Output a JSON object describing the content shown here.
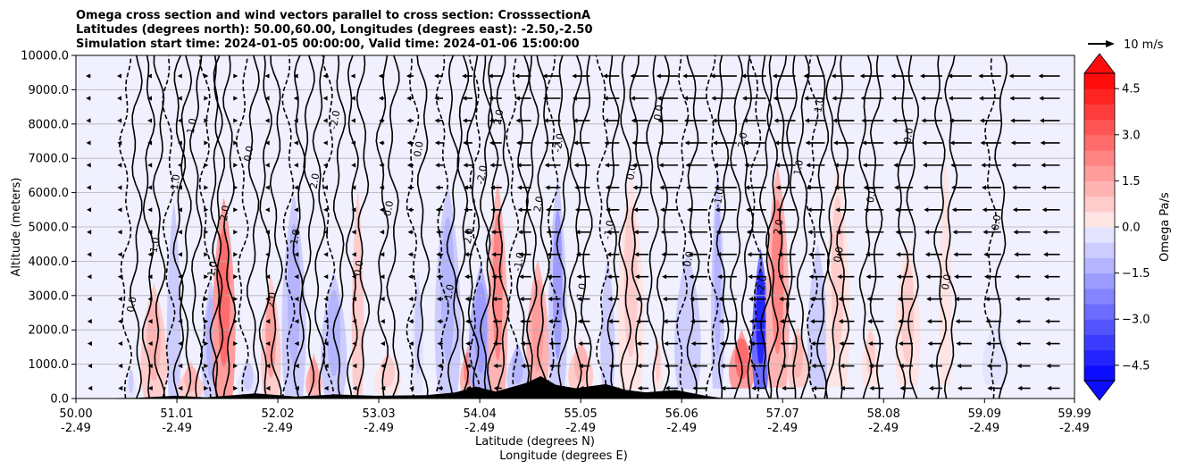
{
  "chart_data": {
    "type": "heatmap",
    "title": [
      "Omega cross section and wind vectors parallel to cross section: CrosssectionA",
      "Latitudes (degrees north): 50.00,60.00, Longitudes (degrees east): -2.50,-2.50",
      "Simulation start time: 2024-01-05 00:00:00, Valid time: 2024-01-06 15:00:00"
    ],
    "xlabel": [
      "Latitude (degrees N)",
      "Longitude (degrees E)"
    ],
    "ylabel": "Altitude (meters)",
    "xlim": [
      50.0,
      59.99
    ],
    "ylim": [
      0,
      10000
    ],
    "x_ticks": [
      {
        "lat": "50.00",
        "lon": "-2.49"
      },
      {
        "lat": "51.01",
        "lon": "-2.49"
      },
      {
        "lat": "52.02",
        "lon": "-2.49"
      },
      {
        "lat": "53.03",
        "lon": "-2.49"
      },
      {
        "lat": "54.04",
        "lon": "-2.49"
      },
      {
        "lat": "55.05",
        "lon": "-2.49"
      },
      {
        "lat": "56.06",
        "lon": "-2.49"
      },
      {
        "lat": "57.07",
        "lon": "-2.49"
      },
      {
        "lat": "58.08",
        "lon": "-2.49"
      },
      {
        "lat": "59.09",
        "lon": "-2.49"
      },
      {
        "lat": "59.99",
        "lon": "-2.49"
      }
    ],
    "y_ticks": [
      "0.0",
      "1000.0",
      "2000.0",
      "3000.0",
      "4000.0",
      "5000.0",
      "6000.0",
      "7000.0",
      "8000.0",
      "9000.0",
      "10000.0"
    ],
    "grid": "horizontal",
    "colorbar": {
      "label": "Omega Pa/s",
      "range": [
        -5.0,
        5.0
      ],
      "ticks": [
        "4.5",
        "3.0",
        "1.5",
        "0.0",
        "−1.5",
        "−3.0",
        "−4.5"
      ],
      "tick_values": [
        4.5,
        3.0,
        1.5,
        0.0,
        -1.5,
        -3.0,
        -4.5
      ],
      "colors": {
        "negative": "#0000ff",
        "zero": "#ffffff",
        "positive": "#ff0000"
      },
      "extend": "both"
    },
    "vector_key": {
      "label": "10 m/s"
    },
    "contour_labels": [
      "0.0",
      "1.0",
      "-1.0",
      "2.0",
      "-2.0"
    ],
    "terrain_color": "#000000",
    "omega_bands": [
      {
        "lat": 50.55,
        "value": -0.6
      },
      {
        "lat": 50.78,
        "value": 1.4
      },
      {
        "lat": 50.98,
        "value": -1.0
      },
      {
        "lat": 51.15,
        "value": 1.2
      },
      {
        "lat": 51.35,
        "value": -1.3
      },
      {
        "lat": 51.48,
        "value": 2.6
      },
      {
        "lat": 51.72,
        "value": -0.8
      },
      {
        "lat": 51.95,
        "value": 1.6
      },
      {
        "lat": 52.18,
        "value": -1.1
      },
      {
        "lat": 52.38,
        "value": 1.8
      },
      {
        "lat": 52.58,
        "value": -1.5
      },
      {
        "lat": 52.82,
        "value": 0.9
      },
      {
        "lat": 53.12,
        "value": 0.7
      },
      {
        "lat": 53.42,
        "value": -0.7
      },
      {
        "lat": 53.72,
        "value": -1.4
      },
      {
        "lat": 53.92,
        "value": 2.2
      },
      {
        "lat": 54.05,
        "value": -1.8
      },
      {
        "lat": 54.22,
        "value": 2.0
      },
      {
        "lat": 54.42,
        "value": -1.2
      },
      {
        "lat": 54.62,
        "value": 1.9
      },
      {
        "lat": 54.82,
        "value": -1.6
      },
      {
        "lat": 55.05,
        "value": 1.1
      },
      {
        "lat": 55.32,
        "value": -1.0
      },
      {
        "lat": 55.55,
        "value": 0.8
      },
      {
        "lat": 55.82,
        "value": 0.5
      },
      {
        "lat": 56.12,
        "value": -0.9
      },
      {
        "lat": 56.42,
        "value": -1.2
      },
      {
        "lat": 56.66,
        "value": 2.6
      },
      {
        "lat": 56.85,
        "value": -4.2
      },
      {
        "lat": 57.02,
        "value": 2.4
      },
      {
        "lat": 57.22,
        "value": 1.2
      },
      {
        "lat": 57.42,
        "value": -1.0
      },
      {
        "lat": 57.62,
        "value": 0.8
      },
      {
        "lat": 57.95,
        "value": 0.5
      },
      {
        "lat": 58.32,
        "value": 0.6
      },
      {
        "lat": 58.7,
        "value": 0.4
      },
      {
        "lat": 59.2,
        "value": -0.3
      }
    ],
    "wind_vectors": {
      "u_ms": [
        {
          "lat": 50.05,
          "u": -2
        },
        {
          "lat": 50.5,
          "u": -1
        },
        {
          "lat": 51.0,
          "u": -0.5
        },
        {
          "lat": 51.5,
          "u": 0.5
        },
        {
          "lat": 52.0,
          "u": -1
        },
        {
          "lat": 52.5,
          "u": -1
        },
        {
          "lat": 53.0,
          "u": -2
        },
        {
          "lat": 53.5,
          "u": -3
        },
        {
          "lat": 54.0,
          "u": -4
        },
        {
          "lat": 54.5,
          "u": -6
        },
        {
          "lat": 55.0,
          "u": -7
        },
        {
          "lat": 55.5,
          "u": -6
        },
        {
          "lat": 56.0,
          "u": -8
        },
        {
          "lat": 56.5,
          "u": -10
        },
        {
          "lat": 57.0,
          "u": -9
        },
        {
          "lat": 57.5,
          "u": -8
        },
        {
          "lat": 58.0,
          "u": -9
        },
        {
          "lat": 58.5,
          "u": -8
        },
        {
          "lat": 59.0,
          "u": -9
        },
        {
          "lat": 59.5,
          "u": -8
        },
        {
          "lat": 59.95,
          "u": -8
        }
      ]
    },
    "terrain_m": [
      {
        "lat": 50.0,
        "h": 0
      },
      {
        "lat": 50.6,
        "h": 20
      },
      {
        "lat": 51.0,
        "h": 80
      },
      {
        "lat": 51.3,
        "h": 30
      },
      {
        "lat": 51.8,
        "h": 150
      },
      {
        "lat": 52.2,
        "h": 60
      },
      {
        "lat": 52.6,
        "h": 120
      },
      {
        "lat": 53.0,
        "h": 80
      },
      {
        "lat": 53.5,
        "h": 100
      },
      {
        "lat": 53.8,
        "h": 180
      },
      {
        "lat": 54.0,
        "h": 350
      },
      {
        "lat": 54.2,
        "h": 200
      },
      {
        "lat": 54.5,
        "h": 450
      },
      {
        "lat": 54.65,
        "h": 650
      },
      {
        "lat": 54.8,
        "h": 400
      },
      {
        "lat": 55.0,
        "h": 300
      },
      {
        "lat": 55.3,
        "h": 420
      },
      {
        "lat": 55.5,
        "h": 250
      },
      {
        "lat": 55.7,
        "h": 180
      },
      {
        "lat": 56.0,
        "h": 250
      },
      {
        "lat": 56.3,
        "h": 80
      },
      {
        "lat": 56.5,
        "h": 0
      },
      {
        "lat": 59.99,
        "h": 0
      }
    ]
  }
}
